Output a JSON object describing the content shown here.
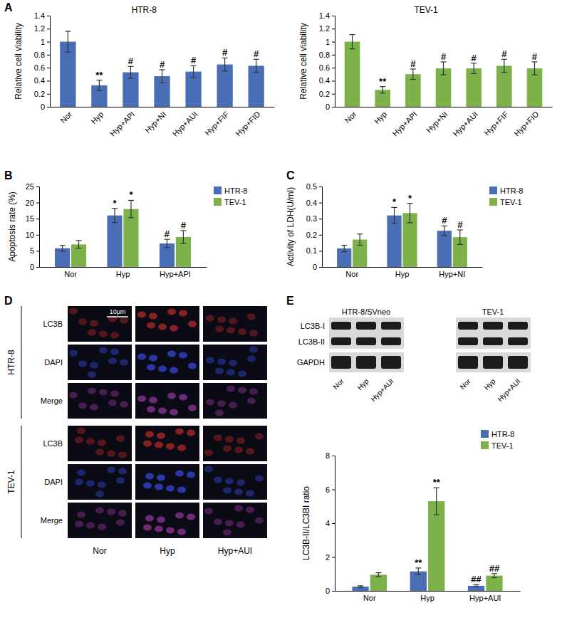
{
  "panel_labels": [
    "A",
    "B",
    "C",
    "D",
    "E"
  ],
  "chart_data": [
    {
      "type": "bar",
      "title": "HTR-8",
      "y_label": "Relative cell viability",
      "categories": [
        "Nor",
        "Hyp",
        "Hyp+API",
        "Hyp+NI",
        "Hyp+AUI",
        "Hyp+FIF",
        "Hyp+FID"
      ],
      "ylim": [
        0,
        1.4
      ],
      "yticks": [
        0,
        0.2,
        0.4,
        0.6,
        0.8,
        1,
        1.2,
        1.4
      ],
      "series": [
        {
          "color": "#4a6eb6",
          "values": [
            1.0,
            0.33,
            0.53,
            0.47,
            0.54,
            0.65,
            0.63
          ],
          "errors": [
            0.16,
            0.08,
            0.09,
            0.1,
            0.09,
            0.1,
            0.1
          ],
          "significance": [
            null,
            "**",
            "#",
            "#",
            "#",
            "#",
            "#"
          ]
        }
      ]
    },
    {
      "type": "bar",
      "title": "TEV-1",
      "y_label": "Relative cell viability",
      "categories": [
        "Nor",
        "Hyp",
        "Hyp+API",
        "Hyp+NI",
        "Hyp+AUI",
        "Hyp+FIF",
        "Hyp+FID"
      ],
      "ylim": [
        0,
        1.4
      ],
      "yticks": [
        0,
        0.2,
        0.4,
        0.6,
        0.8,
        1,
        1.2,
        1.4
      ],
      "series": [
        {
          "color": "#7db24a",
          "values": [
            1.0,
            0.26,
            0.5,
            0.59,
            0.59,
            0.63,
            0.59
          ],
          "errors": [
            0.11,
            0.05,
            0.08,
            0.1,
            0.08,
            0.1,
            0.1
          ],
          "significance": [
            null,
            "**",
            "#",
            "#",
            "#",
            "#",
            "#"
          ]
        }
      ]
    },
    {
      "type": "bar",
      "y_label": "Apoptosis rate (%)",
      "legend": "upper right",
      "categories": [
        "Nor",
        "Hyp",
        "Hyp+API"
      ],
      "ylim": [
        0,
        25
      ],
      "yticks": [
        0,
        5,
        10,
        15,
        20,
        25
      ],
      "series": [
        {
          "name": "HTR-8",
          "color": "#4a6eb6",
          "values": [
            5.8,
            16,
            7.3
          ],
          "errors": [
            0.9,
            2.2,
            1.3
          ],
          "significance": [
            null,
            "*",
            "#"
          ]
        },
        {
          "name": "TEV-1",
          "color": "#7db24a",
          "values": [
            7,
            18,
            9.3
          ],
          "errors": [
            1.2,
            2.7,
            2
          ],
          "significance": [
            null,
            "*",
            "#"
          ]
        }
      ]
    },
    {
      "type": "bar",
      "y_label": "Activity of LDH(U/ml)",
      "legend": "upper right",
      "categories": [
        "Nor",
        "Hyp",
        "Hyp+NI"
      ],
      "ylim": [
        0,
        0.5
      ],
      "yticks": [
        0,
        0.1,
        0.2,
        0.3,
        0.4,
        0.5
      ],
      "series": [
        {
          "name": "HTR-8",
          "color": "#4a6eb6",
          "values": [
            0.115,
            0.32,
            0.225
          ],
          "errors": [
            0.02,
            0.05,
            0.03
          ],
          "significance": [
            null,
            "*",
            "#"
          ]
        },
        {
          "name": "TEV-1",
          "color": "#7db24a",
          "values": [
            0.17,
            0.335,
            0.185
          ],
          "errors": [
            0.035,
            0.06,
            0.045
          ],
          "significance": [
            null,
            "*",
            "#"
          ]
        }
      ]
    },
    {
      "type": "bar",
      "y_label": "LC3B-II/LC3BI ratio",
      "legend": "upper right",
      "categories": [
        "Nor",
        "Hyp",
        "Hyp+AUI"
      ],
      "ylim": [
        0,
        8
      ],
      "yticks": [
        0,
        2,
        4,
        6,
        8
      ],
      "series": [
        {
          "name": "HTR-8",
          "color": "#4a6eb6",
          "values": [
            0.25,
            1.15,
            0.3
          ],
          "errors": [
            0.05,
            0.2,
            0.06
          ],
          "significance": [
            null,
            "**",
            "##"
          ]
        },
        {
          "name": "TEV-1",
          "color": "#7db24a",
          "values": [
            0.95,
            5.3,
            0.9
          ],
          "errors": [
            0.12,
            0.8,
            0.12
          ],
          "significance": [
            null,
            "**",
            "##"
          ]
        }
      ]
    }
  ],
  "images": {
    "groups": [
      "HTR-8",
      "TEV-1"
    ],
    "rows": [
      "LC3B",
      "DAPI",
      "Merge"
    ],
    "columns": [
      "Nor",
      "Hyp",
      "Hyp+AUI"
    ],
    "scale_bar": "10μm"
  },
  "blot": {
    "panel_titles": [
      "HTR-8/SVneo",
      "TEV-1"
    ],
    "rows": [
      "LC3B-I",
      "LC3B-II",
      "GAPDH"
    ],
    "lanes": [
      "Nor",
      "Hyp",
      "Hyp+AUI"
    ]
  }
}
